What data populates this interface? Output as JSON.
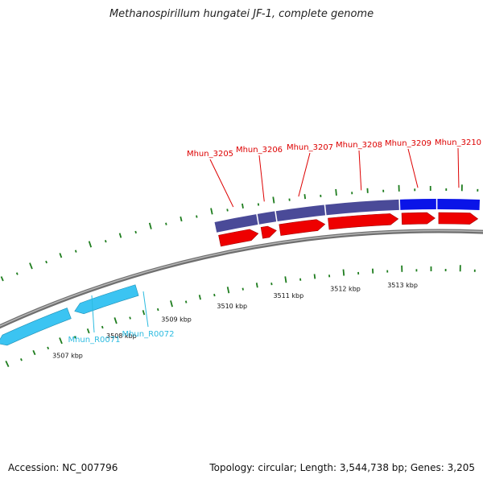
{
  "title": "Methanospirillum hungatei JF-1, complete genome",
  "footer": {
    "accession": "Accession: NC_007796",
    "stats": "Topology: circular; Length: 3,544,738 bp; Genes: 3,205"
  },
  "colors": {
    "tick": "#1e7d1e",
    "backbone": "#888888",
    "reverse_gene": "#3bc4f2",
    "reverse_gene_dark": "#1f8fb5",
    "forward_gene": "#ee0000",
    "forward_gene_dark": "#a30000",
    "cog_purple": "#4a4a98",
    "cog_blue": "#0a14e8",
    "label_forward": "#dd0000",
    "label_reverse": "#2cbbe0"
  },
  "scale_labels": [
    {
      "kbp": 3507,
      "text": "3507 kbp"
    },
    {
      "kbp": 3508,
      "text": "3508 kbp"
    },
    {
      "kbp": 3509,
      "text": "3509 kbp"
    },
    {
      "kbp": 3510,
      "text": "3510 kbp"
    },
    {
      "kbp": 3511,
      "text": "3511 kbp"
    },
    {
      "kbp": 3512,
      "text": "3512 kbp"
    },
    {
      "kbp": 3513,
      "text": "3513 kbp"
    }
  ],
  "forward_genes": [
    {
      "name": "Mhun_3205",
      "start_kbp": 3510.0,
      "end_kbp": 3510.7,
      "cog": "purple"
    },
    {
      "name": "Mhun_3206",
      "start_kbp": 3510.7,
      "end_kbp": 3511.0,
      "cog": "purple"
    },
    {
      "name": "Mhun_3207",
      "start_kbp": 3511.0,
      "end_kbp": 3511.8,
      "cog": "purple"
    },
    {
      "name": "Mhun_3208",
      "start_kbp": 3511.8,
      "end_kbp": 3513.0,
      "cog": "purple"
    },
    {
      "name": "Mhun_3209",
      "start_kbp": 3513.0,
      "end_kbp": 3513.6,
      "cog": "blue"
    },
    {
      "name": "Mhun_3210",
      "start_kbp": 3513.6,
      "end_kbp": 3514.3,
      "cog": "blue"
    }
  ],
  "reverse_genes": [
    {
      "name": "Mhun_R0071",
      "start_kbp": 3506.0,
      "end_kbp": 3507.3
    },
    {
      "name": "Mhun_R0072",
      "start_kbp": 3507.4,
      "end_kbp": 3508.5
    }
  ]
}
